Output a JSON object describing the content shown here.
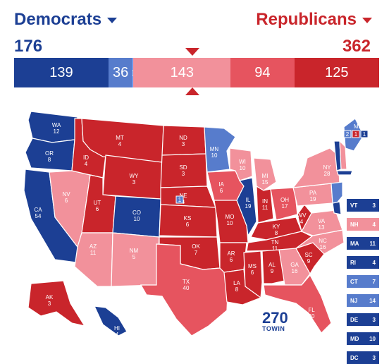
{
  "header": {
    "dem_label": "Democrats",
    "rep_label": "Republicans",
    "dem_total": "176",
    "rep_total": "362"
  },
  "colors": {
    "solid_d": "#1c3f94",
    "likely_d": "#577ccc",
    "lean_d": "#8aafff",
    "tossup": "#bfb8a6",
    "lean_r": "#f2919b",
    "likely_r": "#e6545f",
    "solid_r": "#c9252b"
  },
  "ev_bar": [
    {
      "value": "139",
      "color": "#1c3f94",
      "ev": 139
    },
    {
      "value": "36",
      "color": "#577ccc",
      "ev": 36
    },
    {
      "value": "1",
      "color": "#8aafff",
      "ev": 1
    },
    {
      "value": "143",
      "color": "#f2919b",
      "ev": 143
    },
    {
      "value": "94",
      "color": "#e6545f",
      "ev": 94
    },
    {
      "value": "125",
      "color": "#c9252b",
      "ev": 125
    }
  ],
  "states": [
    {
      "abbr": "WA",
      "ev": "12",
      "color": "#1c3f94"
    },
    {
      "abbr": "OR",
      "ev": "8",
      "color": "#1c3f94"
    },
    {
      "abbr": "CA",
      "ev": "54",
      "color": "#1c3f94"
    },
    {
      "abbr": "NV",
      "ev": "6",
      "color": "#f2919b"
    },
    {
      "abbr": "ID",
      "ev": "4",
      "color": "#c9252b"
    },
    {
      "abbr": "MT",
      "ev": "4",
      "color": "#c9252b"
    },
    {
      "abbr": "WY",
      "ev": "3",
      "color": "#c9252b"
    },
    {
      "abbr": "UT",
      "ev": "6",
      "color": "#c9252b"
    },
    {
      "abbr": "AZ",
      "ev": "11",
      "color": "#f2919b"
    },
    {
      "abbr": "CO",
      "ev": "10",
      "color": "#1c3f94"
    },
    {
      "abbr": "NM",
      "ev": "5",
      "color": "#f2919b"
    },
    {
      "abbr": "ND",
      "ev": "3",
      "color": "#c9252b"
    },
    {
      "abbr": "SD",
      "ev": "3",
      "color": "#c9252b"
    },
    {
      "abbr": "NE",
      "ev": "4",
      "color": "#c9252b"
    },
    {
      "abbr": "KS",
      "ev": "6",
      "color": "#c9252b"
    },
    {
      "abbr": "OK",
      "ev": "7",
      "color": "#c9252b"
    },
    {
      "abbr": "TX",
      "ev": "40",
      "color": "#e6545f"
    },
    {
      "abbr": "MN",
      "ev": "10",
      "color": "#577ccc"
    },
    {
      "abbr": "IA",
      "ev": "6",
      "color": "#e6545f"
    },
    {
      "abbr": "MO",
      "ev": "10",
      "color": "#c9252b"
    },
    {
      "abbr": "AR",
      "ev": "6",
      "color": "#c9252b"
    },
    {
      "abbr": "LA",
      "ev": "8",
      "color": "#c9252b"
    },
    {
      "abbr": "WI",
      "ev": "10",
      "color": "#f2919b"
    },
    {
      "abbr": "IL",
      "ev": "19",
      "color": "#1c3f94"
    },
    {
      "abbr": "MI",
      "ev": "15",
      "color": "#f2919b"
    },
    {
      "abbr": "IN",
      "ev": "11",
      "color": "#c9252b"
    },
    {
      "abbr": "OH",
      "ev": "17",
      "color": "#e6545f"
    },
    {
      "abbr": "KY",
      "ev": "8",
      "color": "#c9252b"
    },
    {
      "abbr": "TN",
      "ev": "11",
      "color": "#c9252b"
    },
    {
      "abbr": "MS",
      "ev": "6",
      "color": "#c9252b"
    },
    {
      "abbr": "AL",
      "ev": "9",
      "color": "#c9252b"
    },
    {
      "abbr": "GA",
      "ev": "16",
      "color": "#f2919b"
    },
    {
      "abbr": "FL",
      "ev": "30",
      "color": "#e6545f"
    },
    {
      "abbr": "SC",
      "ev": "9",
      "color": "#c9252b"
    },
    {
      "abbr": "NC",
      "ev": "16",
      "color": "#f2919b"
    },
    {
      "abbr": "VA",
      "ev": "13",
      "color": "#f2919b"
    },
    {
      "abbr": "WV",
      "ev": "4",
      "color": "#c9252b"
    },
    {
      "abbr": "PA",
      "ev": "19",
      "color": "#f2919b"
    },
    {
      "abbr": "NY",
      "ev": "28",
      "color": "#f2919b"
    },
    {
      "abbr": "ME",
      "ev": "",
      "color": "#577ccc"
    },
    {
      "abbr": "AK",
      "ev": "3",
      "color": "#c9252b"
    },
    {
      "abbr": "HI",
      "ev": "4",
      "color": "#1c3f94"
    }
  ],
  "split_votes": {
    "ne_district": "1",
    "me_values": [
      "2",
      "1",
      "1"
    ]
  },
  "small_states": [
    {
      "abbr": "VT",
      "ev": "3",
      "color": "#1c3f94"
    },
    {
      "abbr": "NH",
      "ev": "4",
      "color": "#f2919b"
    },
    {
      "abbr": "MA",
      "ev": "11",
      "color": "#1c3f94"
    },
    {
      "abbr": "RI",
      "ev": "4",
      "color": "#1c3f94"
    },
    {
      "abbr": "CT",
      "ev": "7",
      "color": "#577ccc"
    },
    {
      "abbr": "NJ",
      "ev": "14",
      "color": "#577ccc"
    },
    {
      "abbr": "DE",
      "ev": "3",
      "color": "#1c3f94"
    },
    {
      "abbr": "MD",
      "ev": "10",
      "color": "#1c3f94"
    },
    {
      "abbr": "DC",
      "ev": "3",
      "color": "#1c3f94"
    }
  ],
  "logo": {
    "number": "270",
    "subtitle": "TOWIN"
  }
}
